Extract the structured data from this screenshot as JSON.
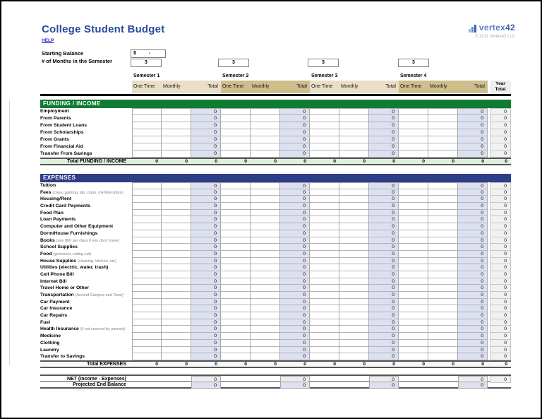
{
  "page": {
    "title": "College Student Budget",
    "help_label": "HELP",
    "logo_text_1": "vertex",
    "logo_text_2": "42",
    "copyright": "© 2011 Vertex42 LLC"
  },
  "controls": {
    "starting_balance_label": "Starting Balance",
    "starting_balance_currency": "$",
    "starting_balance_value": "-",
    "months_label": "# of Months in the Semester",
    "months_values": [
      "3",
      "3",
      "3",
      "3"
    ]
  },
  "table": {
    "semesters": [
      "Semester 1",
      "Semester 2",
      "Semester 3",
      "Semester 4"
    ],
    "sub_columns": [
      "One Time",
      "Monthly",
      "Total"
    ],
    "year_total_lines": [
      "Year",
      "Total"
    ]
  },
  "funding": {
    "header": "FUNDING / INCOME",
    "rows": [
      {
        "label": "Employment",
        "totals": [
          "0",
          "0",
          "0",
          "0"
        ],
        "year": "0"
      },
      {
        "label": "From Parents",
        "totals": [
          "0",
          "0",
          "0",
          "0"
        ],
        "year": "0"
      },
      {
        "label": "From Student Loans",
        "totals": [
          "0",
          "0",
          "0",
          "0"
        ],
        "year": "0"
      },
      {
        "label": "From Scholarships",
        "totals": [
          "0",
          "0",
          "0",
          "0"
        ],
        "year": "0"
      },
      {
        "label": "From Grants",
        "totals": [
          "0",
          "0",
          "0",
          "0"
        ],
        "year": "0"
      },
      {
        "label": "From Financial Aid",
        "totals": [
          "0",
          "0",
          "0",
          "0"
        ],
        "year": "0"
      },
      {
        "label": "Transfer From Savings",
        "totals": [
          "0",
          "0",
          "0",
          "0"
        ],
        "year": "0"
      }
    ],
    "total": {
      "label": "Total FUNDING / INCOME",
      "values": [
        "0",
        "0",
        "0",
        "0",
        "0",
        "0",
        "0",
        "0",
        "0",
        "0",
        "0",
        "0"
      ],
      "year": "0"
    }
  },
  "expenses": {
    "header": "EXPENSES",
    "rows": [
      {
        "label": "Tuition",
        "totals": [
          "0",
          "0",
          "0",
          "0"
        ],
        "year": "0"
      },
      {
        "label": "Fees",
        "note": "(class, parking, lab, clubs, memberships)",
        "totals": [
          "0",
          "0",
          "0",
          "0"
        ],
        "year": "0"
      },
      {
        "label": "Housing/Rent",
        "totals": [
          "0",
          "0",
          "0",
          "0"
        ],
        "year": "0"
      },
      {
        "label": "Credit Card Payments",
        "totals": [
          "0",
          "0",
          "0",
          "0"
        ],
        "year": "0"
      },
      {
        "label": "Food Plan",
        "totals": [
          "0",
          "0",
          "0",
          "0"
        ],
        "year": "0"
      },
      {
        "label": "Loan Payments",
        "totals": [
          "0",
          "0",
          "0",
          "0"
        ],
        "year": "0"
      },
      {
        "label": "Computer and Other Equipment",
        "totals": [
          "0",
          "0",
          "0",
          "0"
        ],
        "year": "0"
      },
      {
        "label": "Dorm/House Furnishings",
        "totals": [
          "0",
          "0",
          "0",
          "0"
        ],
        "year": "0"
      },
      {
        "label": "Books",
        "note": "(use $60 per class if you don't know)",
        "totals": [
          "0",
          "0",
          "0",
          "0"
        ],
        "year": "0"
      },
      {
        "label": "School Supplies",
        "totals": [
          "0",
          "0",
          "0",
          "0"
        ],
        "year": "0"
      },
      {
        "label": "Food",
        "note": "(groceries, eating out)",
        "totals": [
          "0",
          "0",
          "0",
          "0"
        ],
        "year": "0"
      },
      {
        "label": "House Supplies",
        "note": "(cleaning, kitchen, etc)",
        "totals": [
          "0",
          "0",
          "0",
          "0"
        ],
        "year": "0"
      },
      {
        "label": "Utilities (electric, water, trash)",
        "totals": [
          "0",
          "0",
          "0",
          "0"
        ],
        "year": "0"
      },
      {
        "label": "Cell Phone Bill",
        "totals": [
          "0",
          "0",
          "0",
          "0"
        ],
        "year": "0"
      },
      {
        "label": "Internet Bill",
        "totals": [
          "0",
          "0",
          "0",
          "0"
        ],
        "year": "0"
      },
      {
        "label": "Travel Home or Other",
        "totals": [
          "0",
          "0",
          "0",
          "0"
        ],
        "year": "0"
      },
      {
        "label": "Transportation",
        "note": "(Around Campus and Town)",
        "totals": [
          "0",
          "0",
          "0",
          "0"
        ],
        "year": "0"
      },
      {
        "label": "Car Payment",
        "totals": [
          "0",
          "0",
          "0",
          "0"
        ],
        "year": "0"
      },
      {
        "label": "Car Insurance",
        "totals": [
          "0",
          "0",
          "0",
          "0"
        ],
        "year": "0"
      },
      {
        "label": "Car Repairs",
        "totals": [
          "0",
          "0",
          "0",
          "0"
        ],
        "year": "0"
      },
      {
        "label": "Fuel",
        "totals": [
          "0",
          "0",
          "0",
          "0"
        ],
        "year": "0"
      },
      {
        "label": "Health Insurance",
        "note": "(if not covered by parents)",
        "totals": [
          "0",
          "0",
          "0",
          "0"
        ],
        "year": "0"
      },
      {
        "label": "Medicine",
        "totals": [
          "0",
          "0",
          "0",
          "0"
        ],
        "year": "0"
      },
      {
        "label": "Clothing",
        "totals": [
          "0",
          "0",
          "0",
          "0"
        ],
        "year": "0"
      },
      {
        "label": "Laundry",
        "totals": [
          "0",
          "0",
          "0",
          "0"
        ],
        "year": "0"
      },
      {
        "label": "Transfer to Savings",
        "totals": [
          "0",
          "0",
          "0",
          "0"
        ],
        "year": "0"
      }
    ],
    "total": {
      "label": "Total EXPENSES",
      "values": [
        "0",
        "0",
        "0",
        "0",
        "0",
        "0",
        "0",
        "0",
        "0",
        "0",
        "0",
        "0"
      ],
      "year": "0"
    }
  },
  "summary": {
    "net_label": "NET (Income - Expenses)",
    "net_totals": [
      "0",
      "0",
      "0",
      "0"
    ],
    "net_year": "0",
    "projected_label": "Projected End Balance",
    "projected_totals": [
      "0",
      "0",
      "0",
      "0"
    ],
    "projected_year": ""
  },
  "colors": {
    "title_blue": "#2b4a9c",
    "funding_header_green": "#107c32",
    "funding_total_bg": "#dcf0dc",
    "expenses_header_navy": "#2e3d87",
    "total_cell_lavender": "#dce0f0",
    "year_cell_gray": "#f1f1f1",
    "semester_tan_light": "#e8dfc6",
    "semester_tan_dark": "#cdbe8c",
    "help_link_blue": "#2222cc"
  }
}
